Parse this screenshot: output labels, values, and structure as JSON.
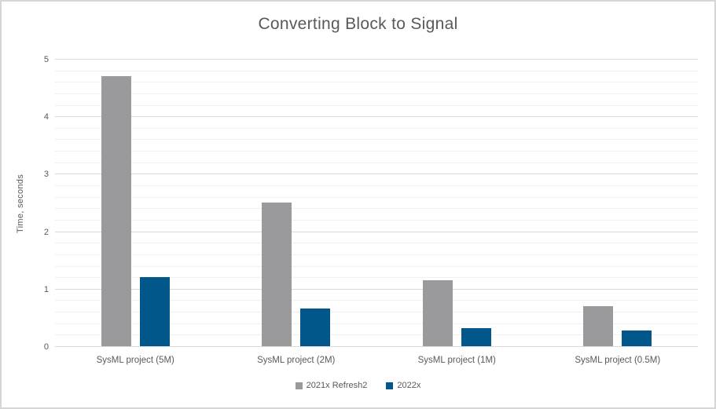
{
  "colors": {
    "series_gray": "#9a9a9c",
    "series_blue": "#02578a",
    "title_text": "#595959",
    "axis_text": "#595959",
    "gridline_major": "#d9d9d9",
    "gridline_minor": "#f0f0f0",
    "axis_line": "#d9d9d9",
    "frame_border": "#d6d6d6",
    "background": "#ffffff"
  },
  "chart_data": {
    "type": "bar",
    "title": "Converting Block to Signal",
    "xlabel": "",
    "ylabel": "Time, seconds",
    "ylim": [
      0,
      5
    ],
    "y_major_step": 1,
    "y_minor_step": 0.2,
    "grid": true,
    "legend_position": "bottom",
    "categories": [
      "SysML project (5M)",
      "SysML project (2M)",
      "SysML project (1M)",
      "SysML project (0.5M)"
    ],
    "series": [
      {
        "name": "2021x Refresh2",
        "color": "#9a9a9c",
        "values": [
          4.7,
          2.5,
          1.15,
          0.7
        ]
      },
      {
        "name": "2022x",
        "color": "#02578a",
        "values": [
          1.2,
          0.65,
          0.32,
          0.28
        ]
      }
    ],
    "y_tick_labels": [
      "0",
      "1",
      "2",
      "3",
      "4",
      "5"
    ]
  }
}
